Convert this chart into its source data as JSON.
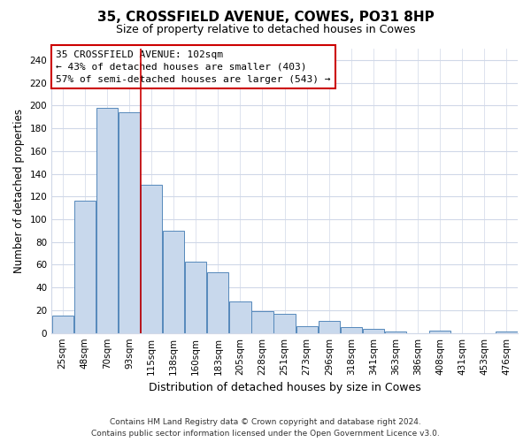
{
  "title1": "35, CROSSFIELD AVENUE, COWES, PO31 8HP",
  "title2": "Size of property relative to detached houses in Cowes",
  "xlabel": "Distribution of detached houses by size in Cowes",
  "ylabel": "Number of detached properties",
  "bar_labels": [
    "25sqm",
    "48sqm",
    "70sqm",
    "93sqm",
    "115sqm",
    "138sqm",
    "160sqm",
    "183sqm",
    "205sqm",
    "228sqm",
    "251sqm",
    "273sqm",
    "296sqm",
    "318sqm",
    "341sqm",
    "363sqm",
    "386sqm",
    "408sqm",
    "431sqm",
    "453sqm",
    "476sqm"
  ],
  "bar_values": [
    15,
    116,
    198,
    194,
    130,
    90,
    63,
    53,
    28,
    19,
    17,
    6,
    11,
    5,
    4,
    1,
    0,
    2,
    0,
    0,
    1
  ],
  "bar_color": "#c8d8ec",
  "bar_edge_color": "#5588bb",
  "ylim": [
    0,
    250
  ],
  "yticks": [
    0,
    20,
    40,
    60,
    80,
    100,
    120,
    140,
    160,
    180,
    200,
    220,
    240
  ],
  "vline_x": 3.5,
  "vline_color": "#cc0000",
  "annotation_line1": "35 CROSSFIELD AVENUE: 102sqm",
  "annotation_line2": "← 43% of detached houses are smaller (403)",
  "annotation_line3": "57% of semi-detached houses are larger (543) →",
  "footer1": "Contains HM Land Registry data © Crown copyright and database right 2024.",
  "footer2": "Contains public sector information licensed under the Open Government Licence v3.0.",
  "background_color": "#ffffff",
  "grid_color": "#d0d8e8"
}
